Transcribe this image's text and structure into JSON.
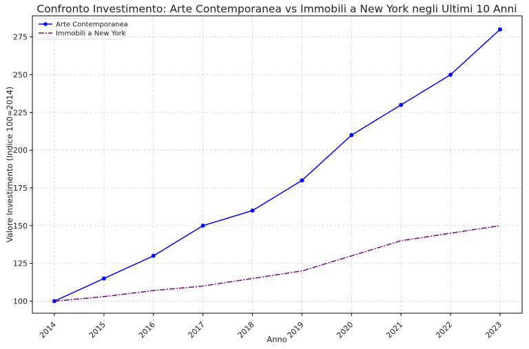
{
  "chart_data": {
    "type": "line",
    "title": "Confronto Investimento: Arte Contemporanea vs Immobili a New York negli Ultimi 10 Anni",
    "xlabel": "Anno",
    "ylabel": "Valore Investimento (Indice 100=2014)",
    "categories": [
      "2014",
      "2015",
      "2016",
      "2017",
      "2018",
      "2019",
      "2020",
      "2021",
      "2022",
      "2023"
    ],
    "y_ticks": [
      100,
      125,
      150,
      175,
      200,
      225,
      250,
      275
    ],
    "ylim": [
      92,
      289
    ],
    "grid": true,
    "legend_position": "top-left",
    "series": [
      {
        "name": "Arte Contemporanea",
        "values": [
          100,
          115,
          130,
          150,
          160,
          180,
          210,
          230,
          250,
          280
        ],
        "color": "#0000ff",
        "line_style": "solid",
        "marker": "circle"
      },
      {
        "name": "Immobili a New York",
        "values": [
          100,
          103,
          107,
          110,
          115,
          120,
          130,
          140,
          145,
          150
        ],
        "color": "#800080",
        "line_style": "dash-dot",
        "marker": "none"
      }
    ]
  }
}
